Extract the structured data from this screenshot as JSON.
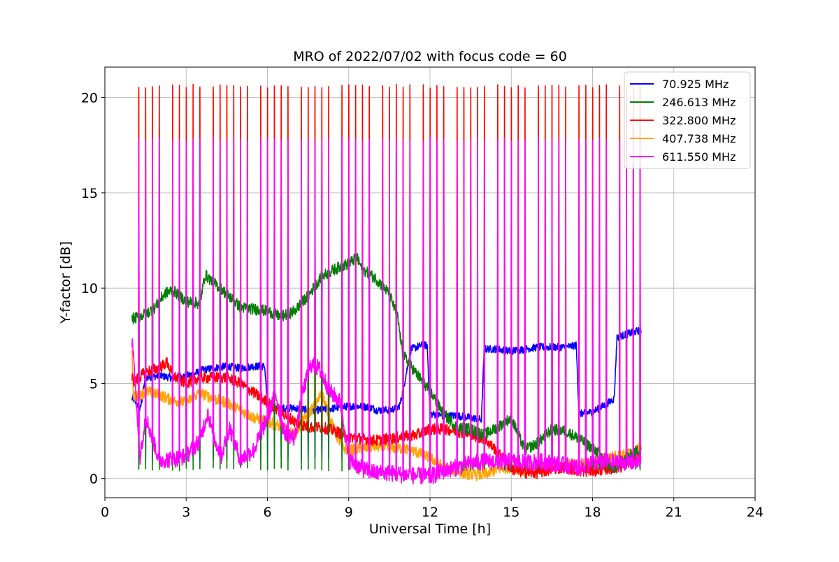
{
  "chart_data": {
    "type": "line",
    "title": "MRO of 2022/07/02 with focus code = 60",
    "xlabel": "Universal Time [h]",
    "ylabel": "Y-factor [dB]",
    "xlim": [
      0,
      24
    ],
    "ylim": [
      -1,
      21.6
    ],
    "xticks": [
      0,
      3,
      6,
      9,
      12,
      15,
      18,
      21,
      24
    ],
    "yticks": [
      0,
      5,
      10,
      15,
      20
    ],
    "grid": true,
    "legend_position": "top-right",
    "pulse_period_h": 0.25,
    "data_start_h": 1.0,
    "data_end_h": 19.8,
    "series": [
      {
        "name": " 70.925 MHz",
        "color": "#0000ff",
        "pulse_peak": 1.0,
        "noise": 0.2,
        "x": [
          1.0,
          1.05,
          1.3,
          1.5,
          2.0,
          2.5,
          3.0,
          3.3,
          3.6,
          4.0,
          4.5,
          5.0,
          5.5,
          5.9,
          6.0,
          6.5,
          7.0,
          7.5,
          8.0,
          8.5,
          9.0,
          9.5,
          9.9,
          10.0,
          10.5,
          10.8,
          10.9,
          11.3,
          11.5,
          11.7,
          11.9,
          12.0,
          12.5,
          13.0,
          13.5,
          13.9,
          14.0,
          14.5,
          14.9,
          15.0,
          15.5,
          16.0,
          16.5,
          17.0,
          17.4,
          17.5,
          18.0,
          18.5,
          18.8,
          18.9,
          19.3,
          19.8
        ],
        "y": [
          4.2,
          4.2,
          3.6,
          5.3,
          5.4,
          5.3,
          5.4,
          5.5,
          5.7,
          5.8,
          5.9,
          5.8,
          5.9,
          5.9,
          3.8,
          3.7,
          3.7,
          3.6,
          3.6,
          3.7,
          3.8,
          3.8,
          3.7,
          3.6,
          3.6,
          3.7,
          3.9,
          6.8,
          6.9,
          7.0,
          7.0,
          3.4,
          3.3,
          3.3,
          3.2,
          3.1,
          6.8,
          6.8,
          6.7,
          6.7,
          6.8,
          6.9,
          6.9,
          6.9,
          7.0,
          3.4,
          3.5,
          3.9,
          4.2,
          7.4,
          7.6,
          7.8
        ]
      },
      {
        "name": "246.613 MHz",
        "color": "#008000",
        "pulse_peak": 0.5,
        "noise": 0.3,
        "x": [
          1.0,
          1.05,
          1.3,
          1.8,
          2.2,
          2.5,
          3.0,
          3.5,
          3.7,
          4.0,
          4.5,
          5.0,
          5.5,
          6.0,
          6.5,
          7.0,
          7.5,
          8.0,
          8.5,
          9.0,
          9.3,
          9.5,
          10.0,
          10.5,
          10.8,
          11.0,
          11.5,
          12.0,
          12.5,
          13.0,
          13.5,
          14.0,
          14.5,
          15.0,
          15.5,
          16.0,
          16.5,
          17.0,
          17.5,
          18.0,
          18.5,
          18.8,
          19.0,
          19.8
        ],
        "y": [
          8.3,
          8.4,
          8.5,
          8.9,
          9.7,
          9.9,
          9.3,
          9.2,
          10.7,
          10.3,
          9.7,
          9.0,
          8.9,
          8.8,
          8.5,
          8.8,
          9.6,
          10.6,
          11.0,
          11.3,
          11.6,
          11.0,
          10.5,
          9.7,
          8.5,
          6.5,
          5.5,
          4.6,
          3.4,
          2.7,
          2.6,
          2.3,
          2.7,
          3.2,
          1.5,
          1.9,
          2.6,
          2.5,
          2.1,
          1.6,
          1.0,
          0.4,
          0.9,
          1.6
        ]
      },
      {
        "name": "322.800 MHz",
        "color": "#ff0000",
        "pulse_peak": 20.6,
        "noise": 0.3,
        "x": [
          1.0,
          1.1,
          1.5,
          2.0,
          2.3,
          2.5,
          3.0,
          3.5,
          4.0,
          4.5,
          5.0,
          5.5,
          6.0,
          6.5,
          7.0,
          7.5,
          8.0,
          8.5,
          9.0,
          9.5,
          10.0,
          10.5,
          11.0,
          11.5,
          12.0,
          12.5,
          13.0,
          13.5,
          14.0,
          14.5,
          15.0,
          15.5,
          16.0,
          16.5,
          17.0,
          17.5,
          18.0,
          18.5,
          19.0,
          19.8
        ],
        "y": [
          5.3,
          5.1,
          5.6,
          5.8,
          6.1,
          5.4,
          5.0,
          5.3,
          5.3,
          5.3,
          5.0,
          4.5,
          4.0,
          3.5,
          3.0,
          2.7,
          2.7,
          2.5,
          2.2,
          2.1,
          2.0,
          2.1,
          2.2,
          2.3,
          2.6,
          2.6,
          2.5,
          2.3,
          2.1,
          1.4,
          0.5,
          0.3,
          0.3,
          0.5,
          0.6,
          0.4,
          0.4,
          0.5,
          0.6,
          1.2
        ]
      },
      {
        "name": "407.738 MHz",
        "color": "#ffa500",
        "pulse_peak": 20.3,
        "noise": 0.3,
        "x": [
          1.0,
          1.05,
          1.2,
          1.5,
          2.0,
          2.5,
          3.0,
          3.5,
          4.0,
          4.5,
          5.0,
          5.5,
          6.0,
          6.5,
          7.0,
          7.5,
          7.8,
          8.0,
          8.5,
          8.8,
          9.0,
          9.5,
          10.0,
          10.5,
          11.0,
          11.5,
          12.0,
          12.5,
          13.0,
          13.5,
          14.0,
          14.5,
          15.0,
          15.5,
          16.0,
          16.5,
          17.0,
          17.5,
          18.0,
          18.5,
          19.0,
          19.5,
          19.8
        ],
        "y": [
          6.8,
          4.4,
          4.3,
          4.6,
          4.4,
          4.1,
          4.0,
          4.5,
          4.2,
          4.0,
          3.6,
          3.2,
          3.0,
          2.7,
          2.3,
          3.4,
          3.9,
          4.5,
          2.4,
          1.6,
          1.5,
          1.6,
          1.7,
          1.6,
          1.6,
          1.4,
          1.1,
          0.6,
          0.4,
          0.2,
          0.2,
          0.5,
          0.6,
          0.4,
          0.6,
          0.7,
          0.8,
          0.7,
          0.8,
          1.1,
          1.2,
          1.4,
          1.6
        ]
      },
      {
        "name": "611.550 MHz",
        "color": "#ff00ff",
        "pulse_peak": 17.8,
        "noise": 0.45,
        "x": [
          1.0,
          1.05,
          1.3,
          1.5,
          2.0,
          2.5,
          3.0,
          3.5,
          3.8,
          4.0,
          4.3,
          4.6,
          5.0,
          5.5,
          6.0,
          6.3,
          6.6,
          7.0,
          7.3,
          7.6,
          7.9,
          8.3,
          8.7,
          9.0,
          9.5,
          10.0,
          10.5,
          11.0,
          11.5,
          12.0,
          12.5,
          13.0,
          13.5,
          14.0,
          14.5,
          15.0,
          15.5,
          16.0,
          16.5,
          17.0,
          17.5,
          18.0,
          18.5,
          19.0,
          19.8
        ],
        "y": [
          7.2,
          6.5,
          1.1,
          3.3,
          1.0,
          1.0,
          1.2,
          2.0,
          3.5,
          2.2,
          1.2,
          2.7,
          1.0,
          1.5,
          3.2,
          4.5,
          2.5,
          2.1,
          4.5,
          6.0,
          5.8,
          4.6,
          4.0,
          1.0,
          0.5,
          0.3,
          0.3,
          0.2,
          0.15,
          0.1,
          0.4,
          0.6,
          0.8,
          0.9,
          0.9,
          0.9,
          0.8,
          0.9,
          0.8,
          0.7,
          0.6,
          0.8,
          0.9,
          0.8,
          0.9
        ]
      }
    ]
  }
}
